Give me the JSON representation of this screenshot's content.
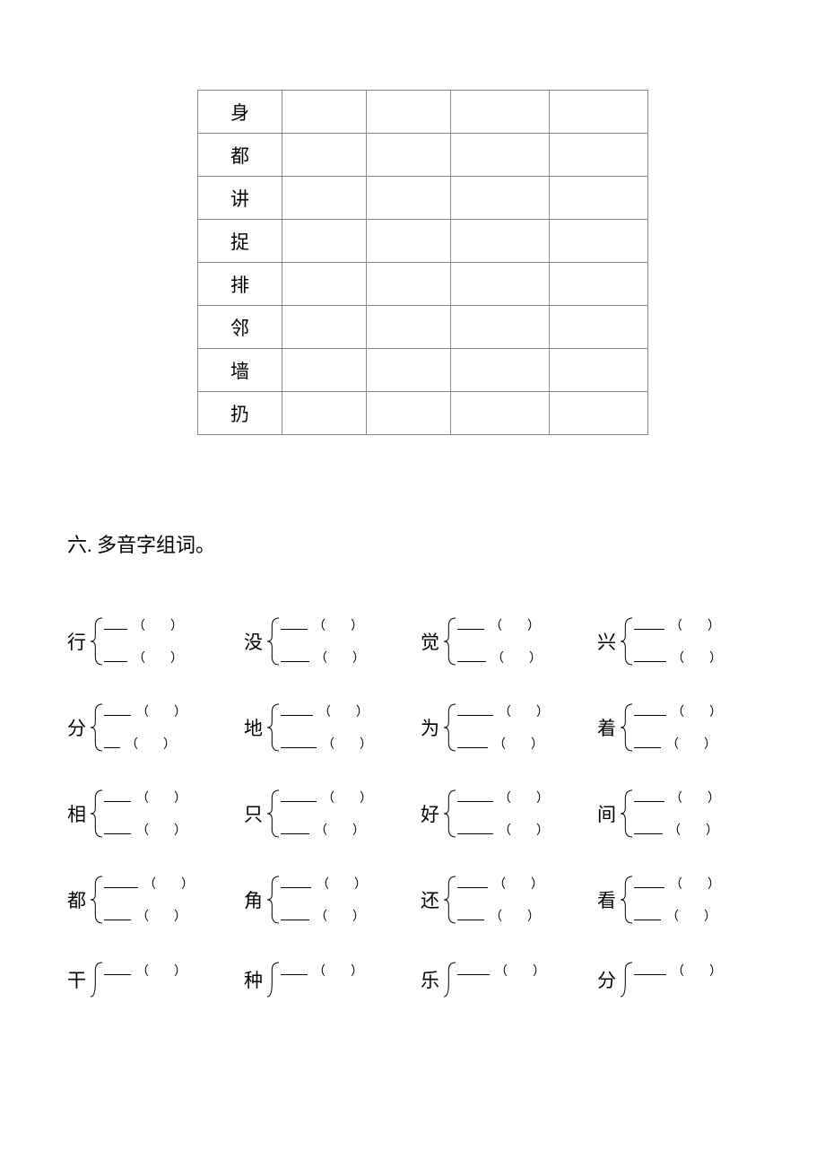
{
  "table": {
    "rows": [
      "身",
      "都",
      "讲",
      "捉",
      "排",
      "邻",
      "墙",
      "扔"
    ]
  },
  "section_title": "六. 多音字组词。",
  "brace_style": {
    "stroke": "#000000",
    "stroke_width": 1,
    "height": 56,
    "width": 14
  },
  "brace_rows": [
    [
      {
        "char": "行",
        "top_blank_w": 26,
        "bot_blank_w": 26
      },
      {
        "char": "没",
        "top_blank_w": 30,
        "bot_blank_w": 32
      },
      {
        "char": "觉",
        "top_blank_w": 30,
        "bot_blank_w": 32
      },
      {
        "char": "兴",
        "top_blank_w": 34,
        "bot_blank_w": 36
      }
    ],
    [
      {
        "char": "分",
        "top_blank_w": 30,
        "bot_blank_w": 18
      },
      {
        "char": "地",
        "top_blank_w": 36,
        "bot_blank_w": 40
      },
      {
        "char": "为",
        "top_blank_w": 40,
        "bot_blank_w": 34
      },
      {
        "char": "着",
        "top_blank_w": 36,
        "bot_blank_w": 30
      }
    ],
    [
      {
        "char": "相",
        "top_blank_w": 30,
        "bot_blank_w": 30
      },
      {
        "char": "只",
        "top_blank_w": 40,
        "bot_blank_w": 32
      },
      {
        "char": "好",
        "top_blank_w": 40,
        "bot_blank_w": 40
      },
      {
        "char": "间",
        "top_blank_w": 34,
        "bot_blank_w": 32
      }
    ],
    [
      {
        "char": "都",
        "top_blank_w": 38,
        "bot_blank_w": 30
      },
      {
        "char": "角",
        "top_blank_w": 34,
        "bot_blank_w": 32
      },
      {
        "char": "还",
        "top_blank_w": 34,
        "bot_blank_w": 30
      },
      {
        "char": "看",
        "top_blank_w": 34,
        "bot_blank_w": 30
      }
    ],
    [
      {
        "char": "干",
        "top_blank_w": 30,
        "bot_blank_w": null
      },
      {
        "char": "种",
        "top_blank_w": 30,
        "bot_blank_w": null
      },
      {
        "char": "乐",
        "top_blank_w": 36,
        "bot_blank_w": null
      },
      {
        "char": "分",
        "top_blank_w": 36,
        "bot_blank_w": null
      }
    ]
  ],
  "paren": {
    "open": "（",
    "close": "）"
  }
}
